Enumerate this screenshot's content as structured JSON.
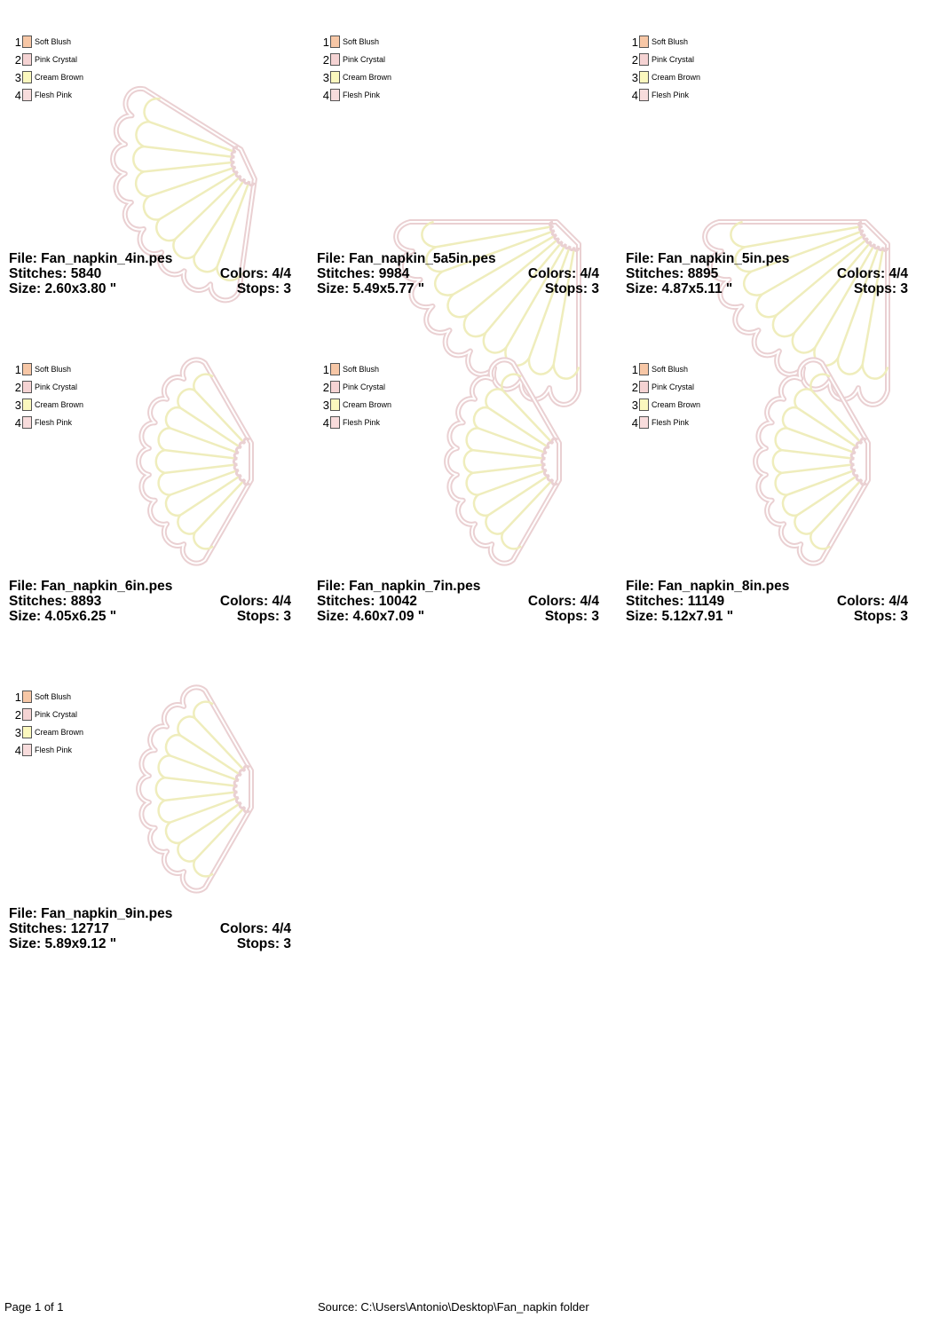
{
  "colors": [
    {
      "num": "1",
      "name": "Soft Blush",
      "hex": "#f7c7a6"
    },
    {
      "num": "2",
      "name": "Pink Crystal",
      "hex": "#f5d3d3"
    },
    {
      "num": "3",
      "name": "Cream Brown",
      "hex": "#fbf8be"
    },
    {
      "num": "4",
      "name": "Flesh Pink",
      "hex": "#f8dcdc"
    }
  ],
  "stitch_colors": {
    "outline": "#ead0d2",
    "ribs": "#efedbc"
  },
  "designs": [
    {
      "file": "File: Fan_napkin_4in.pes",
      "stitches": "Stitches: 5840",
      "colors": "Colors: 4/4",
      "size": "Size: 2.60x3.80 \"",
      "stops": "Stops: 3",
      "orientation": "diagonal-narrow"
    },
    {
      "file": "File: Fan_napkin_5a5in.pes",
      "stitches": "Stitches: 9984",
      "colors": "Colors: 4/4",
      "size": "Size: 5.49x5.77 \"",
      "stops": "Stops: 3",
      "orientation": "diagonal"
    },
    {
      "file": "File: Fan_napkin_5in.pes",
      "stitches": "Stitches: 8895",
      "colors": "Colors: 4/4",
      "size": "Size: 4.87x5.11 \"",
      "stops": "Stops: 3",
      "orientation": "diagonal"
    },
    {
      "file": "File: Fan_napkin_6in.pes",
      "stitches": "Stitches: 8893",
      "colors": "Colors: 4/4",
      "size": "Size: 4.05x6.25 \"",
      "stops": "Stops: 3",
      "orientation": "horizontal"
    },
    {
      "file": "File: Fan_napkin_7in.pes",
      "stitches": "Stitches: 10042",
      "colors": "Colors: 4/4",
      "size": "Size: 4.60x7.09 \"",
      "stops": "Stops: 3",
      "orientation": "horizontal"
    },
    {
      "file": "File: Fan_napkin_8in.pes",
      "stitches": "Stitches: 11149",
      "colors": "Colors: 4/4",
      "size": "Size: 5.12x7.91 \"",
      "stops": "Stops: 3",
      "orientation": "horizontal"
    },
    {
      "file": "File: Fan_napkin_9in.pes",
      "stitches": "Stitches: 12717",
      "colors": "Colors: 4/4",
      "size": "Size: 5.89x9.12 \"",
      "stops": "Stops: 3",
      "orientation": "horizontal"
    }
  ],
  "footer": {
    "page": "Page 1 of 1",
    "source": "Source: C:\\Users\\Antonio\\Desktop\\Fan_napkin folder"
  }
}
